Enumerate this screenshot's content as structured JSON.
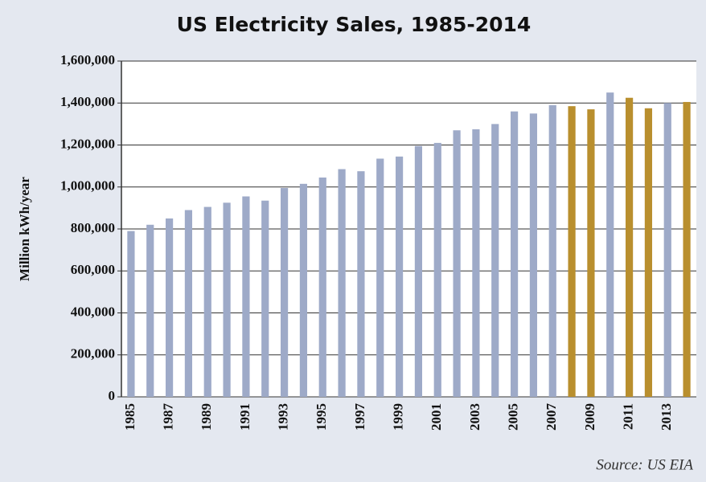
{
  "chart_data": {
    "type": "bar",
    "title": "US Electricity Sales, 1985-2014",
    "y_label": "Million kWh/year",
    "source": "Source: US EIA",
    "categories": [
      "1985",
      null,
      "1987",
      null,
      "1989",
      null,
      "1991",
      null,
      "1993",
      null,
      "1995",
      null,
      "1997",
      null,
      "1999",
      null,
      "2001",
      null,
      "2003",
      null,
      "2005",
      null,
      "2007",
      null,
      "2009",
      null,
      "2011",
      null,
      "2013",
      null
    ],
    "values": [
      790000,
      820000,
      850000,
      890000,
      905000,
      925000,
      955000,
      935000,
      995000,
      1015000,
      1045000,
      1085000,
      1075000,
      1135000,
      1145000,
      1195000,
      1210000,
      1270000,
      1275000,
      1300000,
      1360000,
      1350000,
      1390000,
      1385000,
      1370000,
      1450000,
      1425000,
      1375000,
      1400000,
      1405000
    ],
    "colors": [
      "#9eaac8",
      "#9eaac8",
      "#9eaac8",
      "#9eaac8",
      "#9eaac8",
      "#9eaac8",
      "#9eaac8",
      "#9eaac8",
      "#9eaac8",
      "#9eaac8",
      "#9eaac8",
      "#9eaac8",
      "#9eaac8",
      "#9eaac8",
      "#9eaac8",
      "#9eaac8",
      "#9eaac8",
      "#9eaac8",
      "#9eaac8",
      "#9eaac8",
      "#9eaac8",
      "#9eaac8",
      "#9eaac8",
      "#b98f2e",
      "#b98f2e",
      "#9eaac8",
      "#b98f2e",
      "#b98f2e",
      "#9eaac8",
      "#b98f2e"
    ],
    "ylim": [
      0,
      1600000
    ],
    "yticks": [
      0,
      {
        "value": 200000,
        "label": "200,000"
      },
      {
        "value": 400000,
        "label": "400,000"
      },
      {
        "value": 600000,
        "label": "600,000"
      },
      {
        "value": 800000,
        "label": "800,000"
      },
      {
        "value": 1000000,
        "label": "1,000,000"
      },
      {
        "value": 1200000,
        "label": "1,200,000"
      },
      {
        "value": 1400000,
        "label": "1,400,000"
      },
      {
        "value": 1600000,
        "label": "1,600,000"
      }
    ],
    "grid": true
  }
}
